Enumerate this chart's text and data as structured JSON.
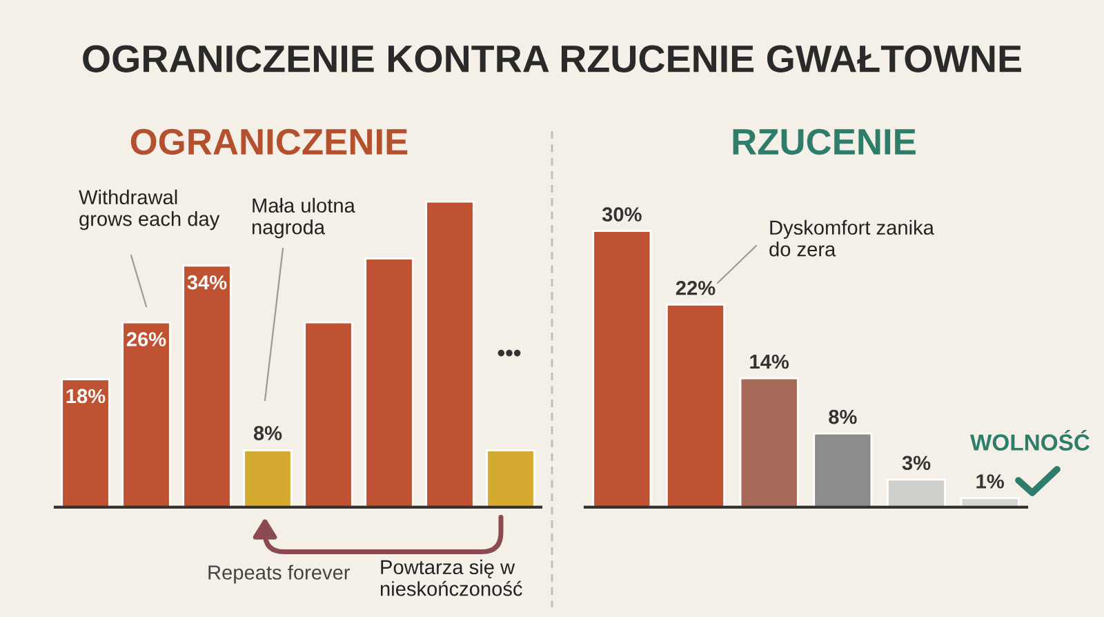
{
  "chart_data": [
    {
      "type": "bar",
      "title": "OGRANICZENIE",
      "categories": [
        null,
        null,
        null,
        null,
        null,
        null,
        null,
        null
      ],
      "values": [
        18,
        26,
        34,
        8,
        26,
        35,
        43,
        8
      ],
      "colors": [
        "#bf5232",
        "#bf5232",
        "#bf5232",
        "#d4aa30",
        "#bf5232",
        "#bf5232",
        "#bf5232",
        "#d4aa30"
      ],
      "value_labels": [
        "18%",
        "26%",
        "34%",
        "8%",
        null,
        null,
        null,
        null
      ],
      "annotations": [
        "OGRANICZENIE KONTRA RZUCENIE GWAŁTOWNE",
        "Withdrawal\ngrows each day",
        "Mała ulotna\nnagroda",
        "•••",
        "Repeats forever",
        "Powtarza się w\nnieskończoność"
      ]
    },
    {
      "type": "bar",
      "title": "RZUCENIE",
      "categories": [
        null,
        null,
        null,
        null,
        null,
        null
      ],
      "values": [
        30,
        22,
        14,
        8,
        3,
        1
      ],
      "colors": [
        "#bf5232",
        "#bf5232",
        "#a86a58",
        "#8c8c8c",
        "#cfcfcc",
        "#d6d6d2"
      ],
      "value_labels": [
        "30%",
        "22%",
        "14%",
        "8%",
        "3%",
        "1%"
      ],
      "annotations": [
        "Dyskomfort zanika\ndo zera",
        "WOLNOŚĆ"
      ]
    }
  ]
}
